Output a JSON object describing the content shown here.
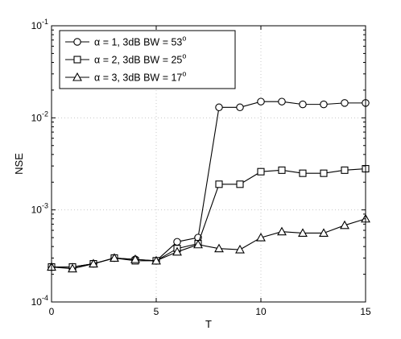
{
  "chart_data": {
    "type": "line",
    "xlabel": "T",
    "ylabel": "NSE",
    "xlim": [
      0,
      15
    ],
    "ylim": [
      0.0001,
      0.1
    ],
    "yscale": "log",
    "grid": true,
    "legend_position": "top-left",
    "x_ticks": [
      "0",
      "5",
      "10",
      "15"
    ],
    "y_ticks": [
      {
        "base": "10",
        "exp": "-4",
        "value": 0.0001
      },
      {
        "base": "10",
        "exp": "-3",
        "value": 0.001
      },
      {
        "base": "10",
        "exp": "-2",
        "value": 0.01
      },
      {
        "base": "10",
        "exp": "-1",
        "value": 0.1
      }
    ],
    "x": [
      0,
      1,
      2,
      3,
      4,
      5,
      6,
      7,
      8,
      9,
      10,
      11,
      12,
      13,
      14,
      15
    ],
    "series": [
      {
        "name": "α = 1, 3dB BW = 53°",
        "legend_main": "α = 1, 3dB BW = 53",
        "legend_sup": "o",
        "marker": "circle",
        "values": [
          0.00024,
          0.00024,
          0.00026,
          0.0003,
          0.00029,
          0.00028,
          0.00045,
          0.0005,
          0.013,
          0.013,
          0.015,
          0.015,
          0.014,
          0.014,
          0.0145,
          0.0145
        ]
      },
      {
        "name": "α = 2, 3dB BW = 25°",
        "legend_main": "α = 2, 3dB BW = 25",
        "legend_sup": "o",
        "marker": "square",
        "values": [
          0.00024,
          0.00024,
          0.00026,
          0.0003,
          0.00028,
          0.00028,
          0.00038,
          0.00043,
          0.0019,
          0.0019,
          0.0026,
          0.0027,
          0.0025,
          0.0025,
          0.0027,
          0.0028
        ]
      },
      {
        "name": "α = 3, 3dB BW = 17°",
        "legend_main": "α = 3, 3dB BW = 17",
        "legend_sup": "o",
        "marker": "triangle",
        "values": [
          0.00024,
          0.00023,
          0.00026,
          0.0003,
          0.00029,
          0.00028,
          0.00035,
          0.00042,
          0.00038,
          0.00037,
          0.0005,
          0.00058,
          0.00056,
          0.00056,
          0.00068,
          0.0008
        ]
      }
    ]
  }
}
